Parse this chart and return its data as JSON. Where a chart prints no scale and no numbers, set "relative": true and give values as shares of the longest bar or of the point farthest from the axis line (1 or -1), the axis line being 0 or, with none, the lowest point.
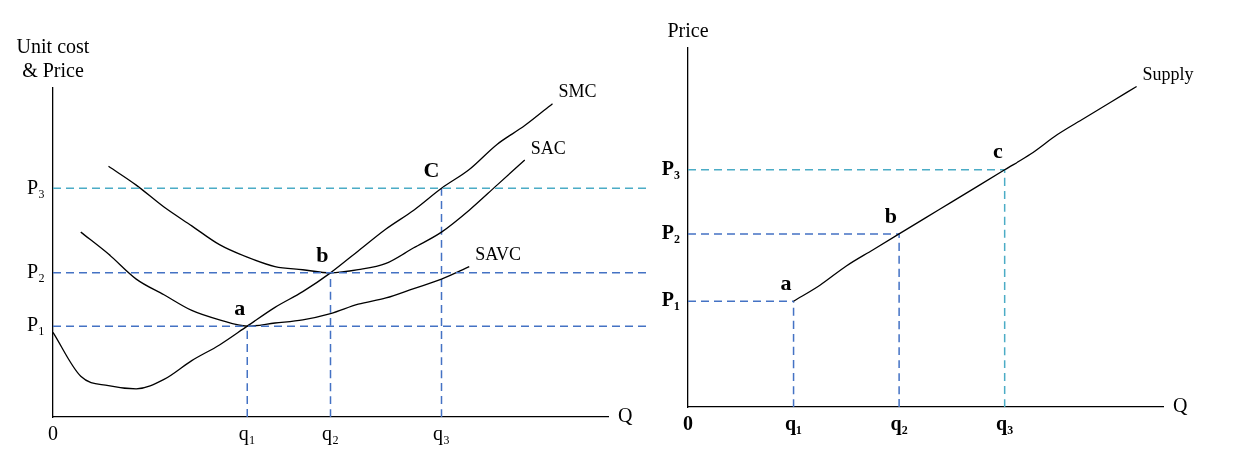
{
  "chart_data": [
    {
      "type": "line",
      "relative": true,
      "xlabel": "Q",
      "ylabel": "Unit cost & Price",
      "grid": false,
      "legend": false,
      "marker": "none",
      "categories": [
        "0",
        null,
        null,
        null,
        null,
        null,
        null,
        "q₁",
        null,
        null,
        "q₂",
        null,
        null,
        null,
        "q₃",
        null,
        null,
        null,
        null,
        null,
        null
      ],
      "ref_lines": [
        {
          "axis": "y",
          "value": 0.29,
          "label": "P₁",
          "color": "#4472c4",
          "line_style": "dashed"
        },
        {
          "axis": "y",
          "value": 0.46,
          "label": "P₂",
          "color": "#4472c4",
          "line_style": "dashed"
        },
        {
          "axis": "y",
          "value": 0.73,
          "label": "P₃",
          "color": "#4bacc6",
          "line_style": "dashed"
        }
      ],
      "annotations": [
        {
          "text": "a",
          "x": "q₁",
          "y": 0.29
        },
        {
          "text": "b",
          "x": "q₂",
          "y": 0.46
        },
        {
          "text": "C",
          "x": "q₃",
          "y": 0.73
        }
      ],
      "series": [
        {
          "name": "SMC",
          "color": "#000000",
          "values": [
            0.27,
            0.13,
            0.1,
            0.09,
            0.12,
            0.18,
            0.23,
            0.29,
            0.35,
            0.4,
            0.46,
            0.53,
            0.6,
            0.66,
            0.73,
            0.79,
            0.87,
            0.93,
            1,
            null,
            null
          ]
        },
        {
          "name": "SAC",
          "color": "#000000",
          "values": [
            null,
            null,
            0.8,
            0.74,
            0.67,
            0.61,
            0.55,
            0.51,
            0.48,
            0.47,
            0.46,
            0.47,
            0.49,
            0.54,
            0.59,
            0.66,
            0.74,
            0.82,
            null,
            null,
            null
          ]
        },
        {
          "name": "SAVC",
          "color": "#000000",
          "values": [
            null,
            0.59,
            0.52,
            0.44,
            0.39,
            0.34,
            0.31,
            0.29,
            0.3,
            0.31,
            0.33,
            0.36,
            0.38,
            0.41,
            0.44,
            0.48,
            null,
            null,
            null,
            null,
            null
          ]
        },
        {
          "color": "#4472c4",
          "line_style": "dashed",
          "x": [
            "q₁",
            "q₁"
          ],
          "values": [
            0,
            0.29
          ]
        },
        {
          "color": "#4472c4",
          "line_style": "dashed",
          "x": [
            "q₂",
            "q₂"
          ],
          "values": [
            0,
            0.46
          ]
        },
        {
          "color": "#4472c4",
          "line_style": "dashed",
          "x": [
            "q₃",
            "q₃"
          ],
          "values": [
            0,
            0.73
          ]
        }
      ]
    },
    {
      "type": "line",
      "relative": true,
      "xlabel": "Q",
      "ylabel": "Price",
      "grid": false,
      "legend": false,
      "marker": "none",
      "categories": [
        "0",
        null,
        null,
        null,
        "q₁",
        null,
        null,
        null,
        "q₂",
        null,
        null,
        null,
        "q₃",
        null,
        null,
        null,
        null,
        null,
        null
      ],
      "annotations": [
        {
          "text": "a",
          "x": "q₁",
          "y": 0.33
        },
        {
          "text": "b",
          "x": "q₂",
          "y": 0.54
        },
        {
          "text": "c",
          "x": "q₃",
          "y": 0.74
        }
      ],
      "series": [
        {
          "name": "Supply",
          "color": "#000000",
          "values": [
            null,
            null,
            null,
            null,
            0.33,
            0.38,
            0.44,
            0.49,
            0.54,
            0.59,
            0.64,
            0.69,
            0.74,
            0.79,
            0.85,
            0.9,
            0.95,
            1,
            null
          ]
        },
        {
          "name": "P₁",
          "color": "#4472c4",
          "line_style": "dashed",
          "values": [
            0.33,
            0.33,
            0.33,
            0.33,
            0.33,
            null,
            null,
            null,
            null,
            null,
            null,
            null,
            null,
            null,
            null,
            null,
            null,
            null,
            null
          ]
        },
        {
          "name": "P₂",
          "color": "#4472c4",
          "line_style": "dashed",
          "values": [
            0.54,
            0.54,
            0.54,
            0.54,
            0.54,
            0.54,
            0.54,
            0.54,
            0.54,
            null,
            null,
            null,
            null,
            null,
            null,
            null,
            null,
            null,
            null
          ]
        },
        {
          "name": "P₃",
          "color": "#4bacc6",
          "line_style": "dashed",
          "values": [
            0.74,
            0.74,
            0.74,
            0.74,
            0.74,
            0.74,
            0.74,
            0.74,
            0.74,
            0.74,
            0.74,
            0.74,
            0.74,
            null,
            null,
            null,
            null,
            null,
            null
          ]
        },
        {
          "color": "#4472c4",
          "line_style": "dashed",
          "x": [
            "q₁",
            "q₁"
          ],
          "values": [
            0,
            0.33
          ]
        },
        {
          "color": "#4472c4",
          "line_style": "dashed",
          "x": [
            "q₂",
            "q₂"
          ],
          "values": [
            0,
            0.54
          ]
        },
        {
          "color": "#4bacc6",
          "line_style": "dashed",
          "x": [
            "q₃",
            "q₃"
          ],
          "values": [
            0,
            0.74
          ]
        }
      ]
    }
  ]
}
